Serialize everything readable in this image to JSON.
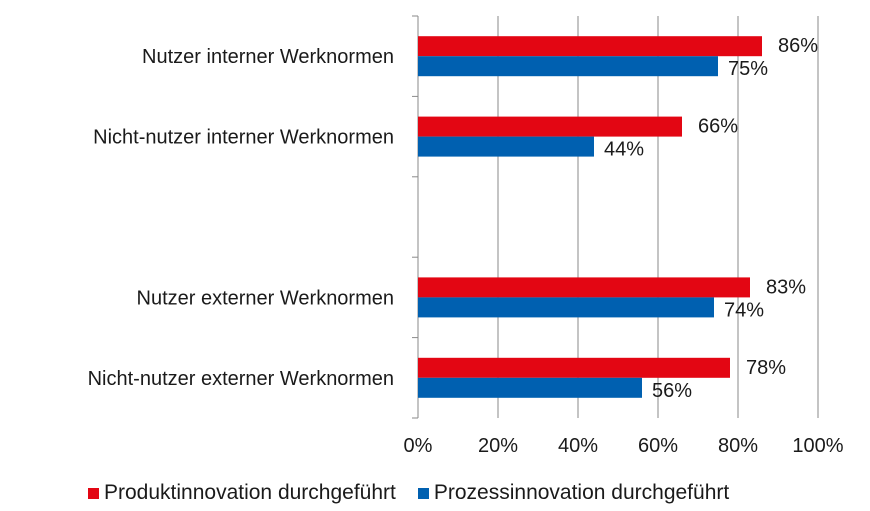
{
  "chart_data": {
    "type": "bar",
    "orientation": "horizontal",
    "categories": [
      "Nutzer interner Werknormen",
      "Nicht-nutzer interner Werknormen",
      "",
      "Nutzer externer Werknormen",
      "Nicht-nutzer externer Werknormen"
    ],
    "series": [
      {
        "name": "Produktinnovation durchgeführt",
        "color": "#e30613",
        "values": [
          86,
          66,
          null,
          83,
          78
        ],
        "labels": [
          "86%",
          "66%",
          "",
          "83%",
          "78%"
        ]
      },
      {
        "name": "Prozessinnovation durchgeführt",
        "color": "#0060b0",
        "values": [
          75,
          44,
          null,
          74,
          56
        ],
        "labels": [
          "75%",
          "44%",
          "",
          "74%",
          "56%"
        ]
      }
    ],
    "xlim": [
      0,
      100
    ],
    "xticks": [
      "0%",
      "20%",
      "40%",
      "60%",
      "80%",
      "100%"
    ],
    "grid": "vertical",
    "legend_position": "bottom"
  }
}
